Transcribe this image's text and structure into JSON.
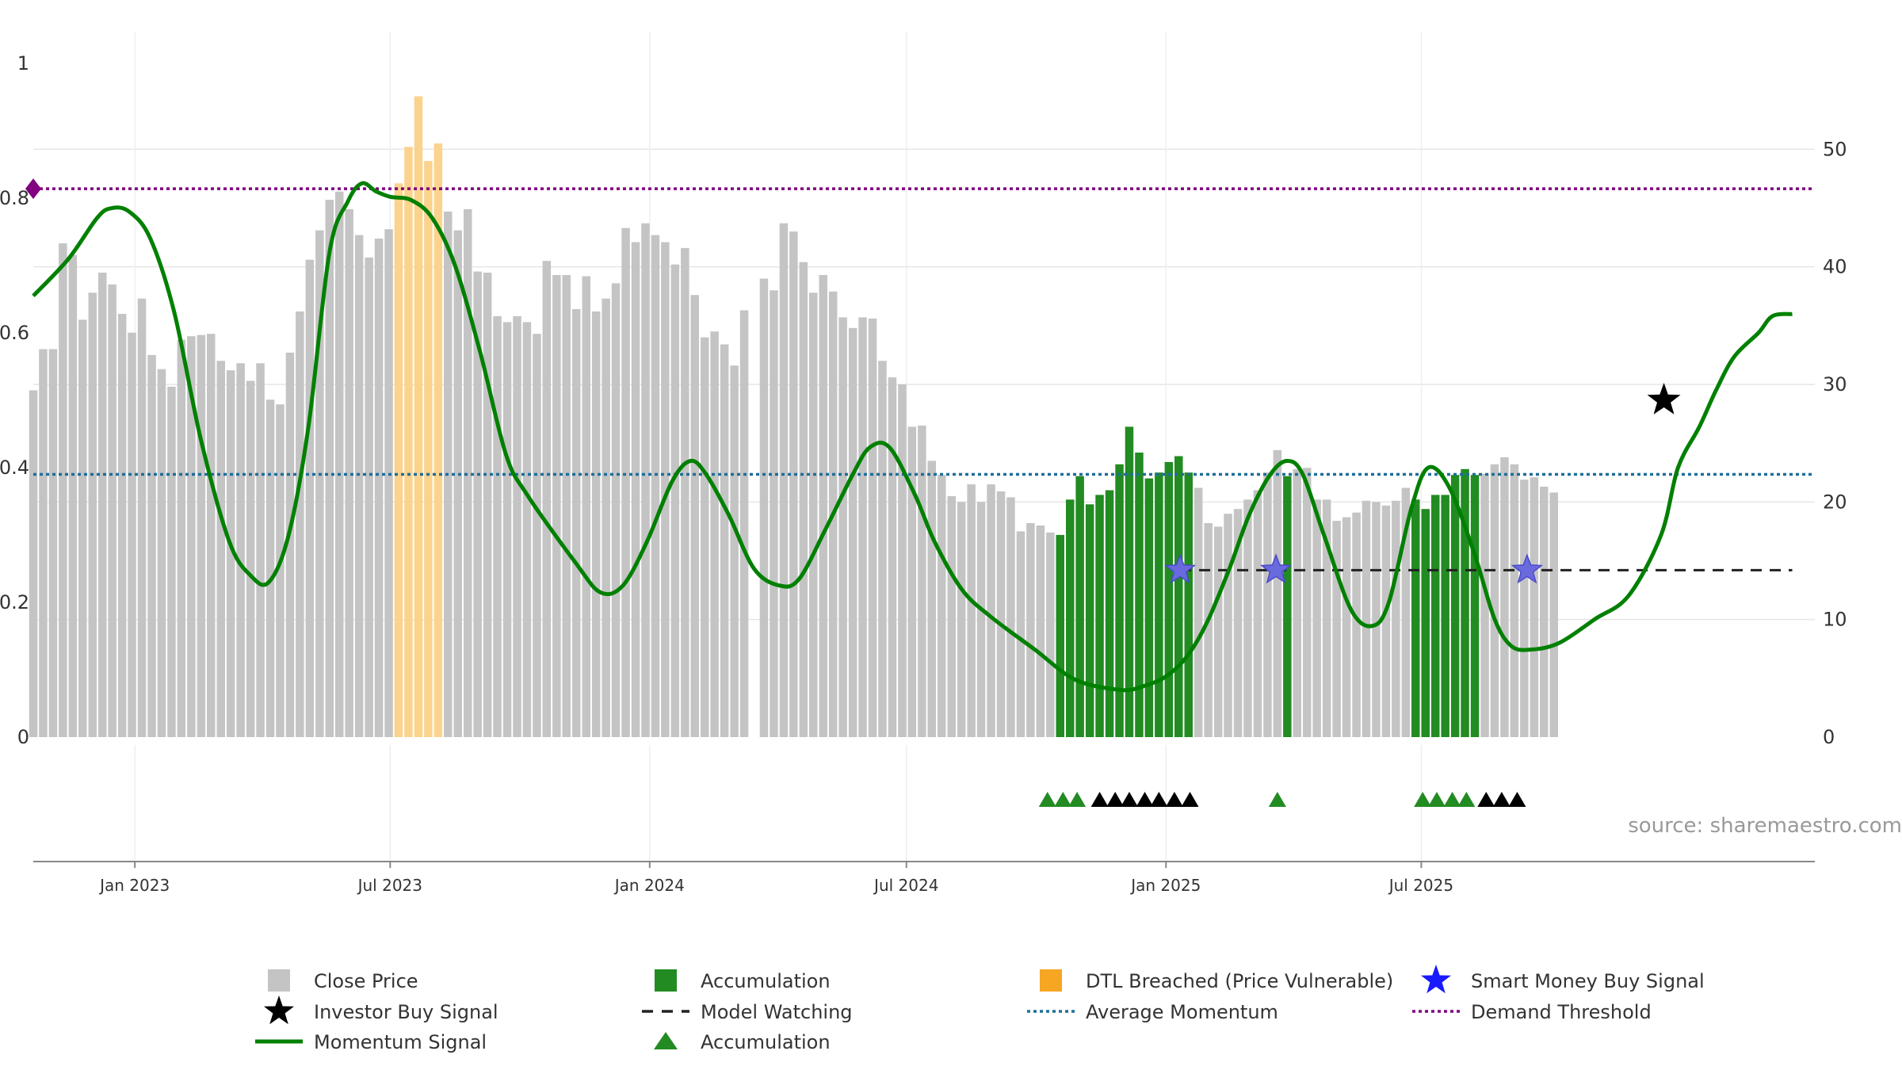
{
  "chart_data": {
    "type": "bar",
    "source_text": "source: sharemaestro.com",
    "x_ticks": [
      "Jan 2023",
      "Jul 2023",
      "Jan 2024",
      "Jul 2024",
      "Jan 2025",
      "Jul 2025"
    ],
    "left_axis": {
      "ylim": [
        0,
        1
      ],
      "ticks": [
        "0",
        "0.2",
        "0.4",
        "0.6",
        "0.8",
        "1"
      ]
    },
    "right_axis": {
      "ylim": [
        0,
        57.3
      ],
      "ticks": [
        "0",
        "10",
        "20",
        "30",
        "40",
        "50"
      ]
    },
    "grid": true,
    "legend_position": "bottom",
    "colors": {
      "close_price": "#c4c4c4",
      "accumulation": "#228b22",
      "dtl_breached": "#fbd38d",
      "dtl_legend": "#f5a623",
      "momentum": "#008000",
      "average_momentum": "#1f6e99",
      "demand_threshold": "#800080",
      "model_watching": "#222222",
      "smart_money": "#1a1aff",
      "investor": "#000000",
      "grid": "#e6e6e6",
      "axis": "#888888",
      "source": "#999999"
    },
    "average_momentum": 0.39,
    "demand_threshold": 0.814,
    "model_watching_level": 14.2,
    "bar_series": {
      "name": "Close Price",
      "start_date": "2022-10-21",
      "values": [
        29.5,
        33,
        33,
        42,
        41,
        35.5,
        37.8,
        39.5,
        38.5,
        36,
        34.4,
        37.3,
        32.5,
        31.3,
        29.8,
        33.8,
        34.1,
        34.2,
        34.3,
        32,
        31.2,
        31.8,
        30.3,
        31.8,
        28.7,
        28.3,
        32.7,
        36.2,
        40.6,
        43.1,
        45.7,
        46.4,
        44.9,
        42.7,
        40.8,
        42.4,
        43.2,
        47.1,
        50.2,
        54.5,
        49,
        50.5,
        44.7,
        43.1,
        44.9,
        39.6,
        39.5,
        35.8,
        35.3,
        35.8,
        35.3,
        34.3,
        40.5,
        39.3,
        39.3,
        36.4,
        39.2,
        36.2,
        37.3,
        38.6,
        43.3,
        42.1,
        43.7,
        42.7,
        42.1,
        40.2,
        41.6,
        37.6,
        34,
        34.5,
        33.4,
        31.6,
        36.3,
        null,
        39,
        38,
        43.7,
        43,
        40.4,
        37.8,
        39.3,
        37.9,
        35.7,
        34.8,
        35.7,
        35.6,
        32,
        30.6,
        30,
        26.4,
        26.5,
        23.5,
        22.3,
        20.5,
        20,
        21.5,
        20,
        21.5,
        20.9,
        20.4,
        17.5,
        18.2,
        18,
        17.4,
        17.2,
        20.2,
        22.2,
        19.8,
        20.6,
        21,
        23.2,
        26.4,
        24.2,
        22,
        22.5,
        23.4,
        23.9,
        22.5,
        21.2,
        18.2,
        17.9,
        19,
        19.4,
        20.2,
        21,
        22.5,
        24.4,
        22.2,
        22.8,
        22.9,
        20.2,
        20.2,
        18.4,
        18.7,
        19.1,
        20.1,
        20,
        19.7,
        20.1,
        21.2,
        20.2,
        19.4,
        20.6,
        20.6,
        22.3,
        22.8,
        22.3,
        22.4,
        23.2,
        23.8,
        23.2,
        21.9,
        22.1,
        21.3,
        20.8
      ],
      "accumulation_indices": [
        104,
        105,
        106,
        107,
        108,
        109,
        110,
        111,
        112,
        113,
        114,
        115,
        116,
        117,
        127,
        140,
        141,
        142,
        143,
        144,
        145,
        146
      ],
      "dtl_indices": [
        37,
        38,
        39,
        40,
        41
      ]
    },
    "momentum_series": {
      "name": "Momentum Signal",
      "points": [
        [
          "2022-10-21",
          0.655
        ],
        [
          "2022-11-15",
          0.71
        ],
        [
          "2022-12-05",
          0.77
        ],
        [
          "2022-12-15",
          0.785
        ],
        [
          "2022-12-28",
          0.78
        ],
        [
          "2023-01-12",
          0.74
        ],
        [
          "2023-01-29",
          0.63
        ],
        [
          "2023-02-17",
          0.44
        ],
        [
          "2023-03-09",
          0.29
        ],
        [
          "2023-03-24",
          0.24
        ],
        [
          "2023-04-06",
          0.23
        ],
        [
          "2023-04-20",
          0.3
        ],
        [
          "2023-05-04",
          0.46
        ],
        [
          "2023-05-19",
          0.72
        ],
        [
          "2023-06-01",
          0.795
        ],
        [
          "2023-06-11",
          0.822
        ],
        [
          "2023-06-21",
          0.81
        ],
        [
          "2023-07-01",
          0.802
        ],
        [
          "2023-07-16",
          0.797
        ],
        [
          "2023-07-31",
          0.77
        ],
        [
          "2023-08-16",
          0.7
        ],
        [
          "2023-09-03",
          0.57
        ],
        [
          "2023-09-21",
          0.42
        ],
        [
          "2023-10-06",
          0.36
        ],
        [
          "2023-11-09",
          0.26
        ],
        [
          "2023-11-27",
          0.215
        ],
        [
          "2023-12-13",
          0.225
        ],
        [
          "2023-12-30",
          0.29
        ],
        [
          "2024-01-17",
          0.38
        ],
        [
          "2024-01-30",
          0.41
        ],
        [
          "2024-02-10",
          0.39
        ],
        [
          "2024-02-26",
          0.33
        ],
        [
          "2024-03-15",
          0.25
        ],
        [
          "2024-04-02",
          0.225
        ],
        [
          "2024-04-16",
          0.235
        ],
        [
          "2024-05-05",
          0.31
        ],
        [
          "2024-05-24",
          0.39
        ],
        [
          "2024-06-05",
          0.43
        ],
        [
          "2024-06-19",
          0.43
        ],
        [
          "2024-07-07",
          0.36
        ],
        [
          "2024-07-21",
          0.29
        ],
        [
          "2024-08-09",
          0.22
        ],
        [
          "2024-08-29",
          0.18
        ],
        [
          "2024-09-30",
          0.13
        ],
        [
          "2024-10-29",
          0.085
        ],
        [
          "2024-11-30",
          0.07
        ],
        [
          "2024-12-15",
          0.075
        ],
        [
          "2025-01-01",
          0.09
        ],
        [
          "2025-01-16",
          0.12
        ],
        [
          "2025-01-30",
          0.17
        ],
        [
          "2025-02-15",
          0.25
        ],
        [
          "2025-03-01",
          0.33
        ],
        [
          "2025-03-16",
          0.39
        ],
        [
          "2025-03-28",
          0.41
        ],
        [
          "2025-04-08",
          0.39
        ],
        [
          "2025-04-23",
          0.3
        ],
        [
          "2025-05-12",
          0.19
        ],
        [
          "2025-05-27",
          0.165
        ],
        [
          "2025-06-08",
          0.2
        ],
        [
          "2025-06-24",
          0.34
        ],
        [
          "2025-07-06",
          0.4
        ],
        [
          "2025-07-21",
          0.37
        ],
        [
          "2025-08-08",
          0.27
        ],
        [
          "2025-08-22",
          0.175
        ],
        [
          "2025-09-03",
          0.135
        ],
        [
          "2025-09-17",
          0.13
        ],
        [
          "2025-10-07",
          0.14
        ],
        [
          "2025-11-01",
          0.175
        ],
        [
          "2025-11-25",
          0.21
        ],
        [
          "2025-12-18",
          0.3
        ],
        [
          "2025-12-30",
          0.4
        ],
        [
          "2026-01-14",
          0.46
        ],
        [
          "2026-01-26",
          0.515
        ],
        [
          "2026-02-08",
          0.565
        ],
        [
          "2026-02-25",
          0.6
        ],
        [
          "2026-03-07",
          0.625
        ],
        [
          "2026-03-21",
          0.628
        ]
      ]
    },
    "accumulation_markers": {
      "green": [
        "2024-10-09",
        "2024-10-20",
        "2024-10-30",
        "2025-03-21",
        "2025-07-02",
        "2025-07-12",
        "2025-07-23",
        "2025-08-02"
      ],
      "black": [
        "2024-11-15",
        "2024-11-26",
        "2024-12-06",
        "2024-12-17",
        "2024-12-27",
        "2025-01-07",
        "2025-01-18",
        "2025-08-16",
        "2025-08-27",
        "2025-09-07"
      ]
    },
    "smart_money_signals": [
      "2025-01-11",
      "2025-03-20",
      "2025-09-14"
    ],
    "investor_buy_signal": {
      "date": "2025-12-20",
      "value": 0.5
    },
    "legend": [
      {
        "key": "close_price",
        "label": "Close Price"
      },
      {
        "key": "accumulation",
        "label": "Accumulation"
      },
      {
        "key": "dtl_breached",
        "label": "DTL Breached (Price Vulnerable)"
      },
      {
        "key": "smart_money",
        "label": "Smart Money Buy Signal"
      },
      {
        "key": "investor",
        "label": "Investor Buy Signal"
      },
      {
        "key": "model_watching",
        "label": "Model Watching"
      },
      {
        "key": "average_momentum",
        "label": "Average Momentum"
      },
      {
        "key": "demand_threshold",
        "label": "Demand Threshold"
      },
      {
        "key": "momentum",
        "label": "Momentum Signal"
      },
      {
        "key": "accumulation_marker",
        "label": "Accumulation"
      }
    ]
  }
}
